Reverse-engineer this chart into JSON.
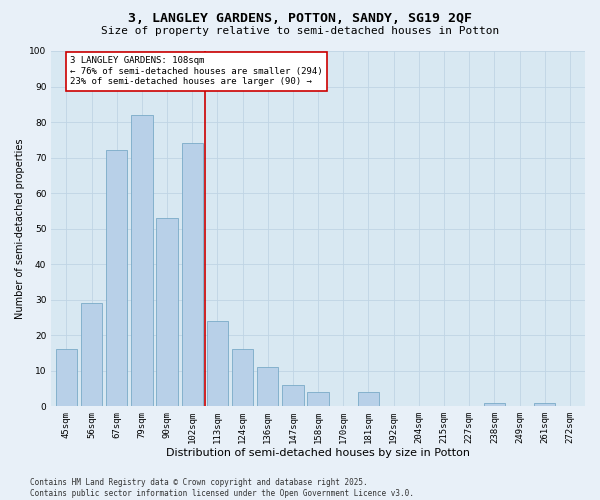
{
  "title1": "3, LANGLEY GARDENS, POTTON, SANDY, SG19 2QF",
  "title2": "Size of property relative to semi-detached houses in Potton",
  "xlabel": "Distribution of semi-detached houses by size in Potton",
  "ylabel": "Number of semi-detached properties",
  "categories": [
    "45sqm",
    "56sqm",
    "67sqm",
    "79sqm",
    "90sqm",
    "102sqm",
    "113sqm",
    "124sqm",
    "136sqm",
    "147sqm",
    "158sqm",
    "170sqm",
    "181sqm",
    "192sqm",
    "204sqm",
    "215sqm",
    "227sqm",
    "238sqm",
    "249sqm",
    "261sqm",
    "272sqm"
  ],
  "values": [
    16,
    29,
    72,
    82,
    53,
    74,
    24,
    16,
    11,
    6,
    4,
    0,
    4,
    0,
    0,
    0,
    0,
    1,
    0,
    1,
    0
  ],
  "bar_color": "#b8d0e8",
  "bar_edgecolor": "#7aaac8",
  "vline_x_index": 5.5,
  "vline_color": "#cc0000",
  "annotation_text": "3 LANGLEY GARDENS: 108sqm\n← 76% of semi-detached houses are smaller (294)\n23% of semi-detached houses are larger (90) →",
  "annotation_box_facecolor": "#ffffff",
  "annotation_box_edgecolor": "#cc0000",
  "ylim": [
    0,
    100
  ],
  "yticks": [
    0,
    10,
    20,
    30,
    40,
    50,
    60,
    70,
    80,
    90,
    100
  ],
  "grid_color": "#c0d4e4",
  "bg_color": "#d8e8f2",
  "fig_bg_color": "#e8f0f8",
  "footnote": "Contains HM Land Registry data © Crown copyright and database right 2025.\nContains public sector information licensed under the Open Government Licence v3.0.",
  "title1_fontsize": 9.5,
  "title2_fontsize": 8,
  "xlabel_fontsize": 8,
  "ylabel_fontsize": 7,
  "tick_fontsize": 6.5,
  "annot_fontsize": 6.5,
  "footnote_fontsize": 5.5
}
